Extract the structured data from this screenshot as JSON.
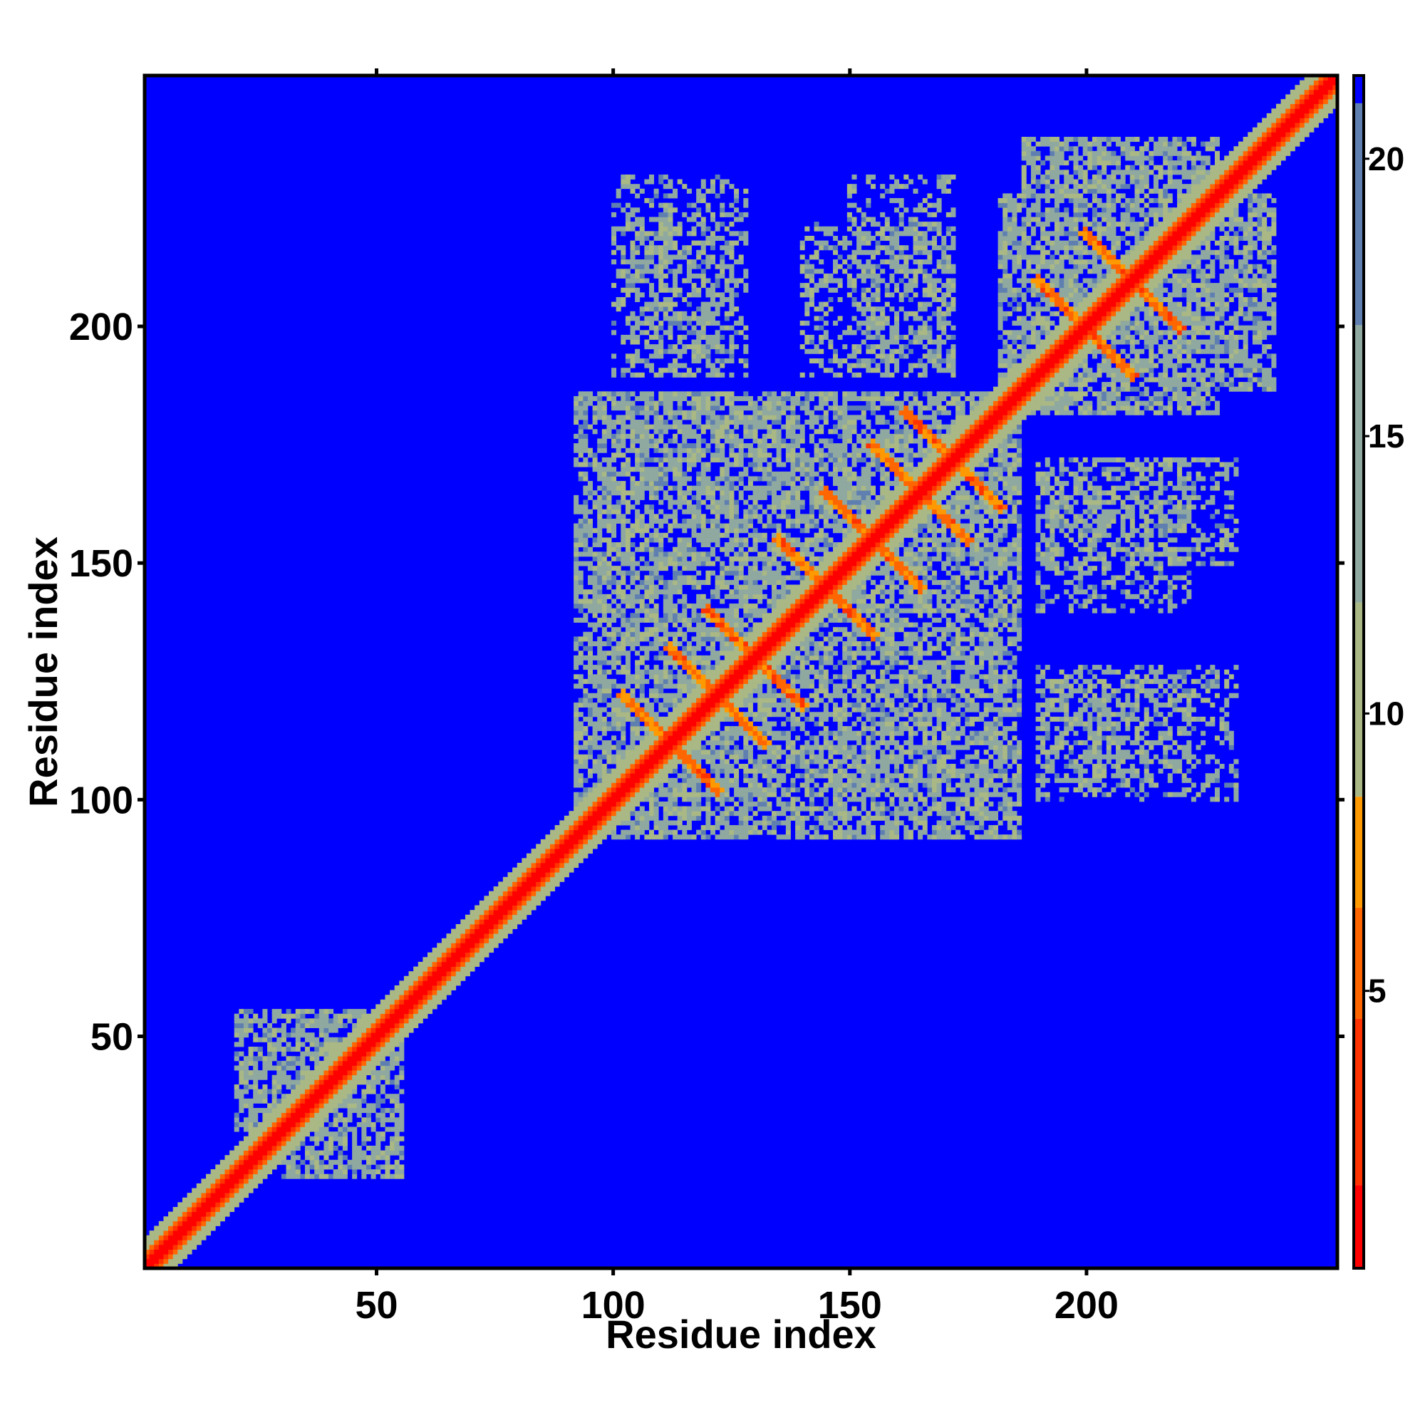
{
  "chart_data": {
    "type": "heatmap",
    "title": "",
    "xlabel": "Residue index",
    "ylabel": "Residue index",
    "xlim": [
      1,
      253
    ],
    "ylim": [
      1,
      253
    ],
    "x_ticks": [
      50,
      100,
      150,
      200
    ],
    "y_ticks": [
      50,
      100,
      150,
      200
    ],
    "x_tick_labels": [
      "50",
      "100",
      "150",
      "200"
    ],
    "y_tick_labels": [
      "50",
      "100",
      "150",
      "200"
    ],
    "colorbar": {
      "range": [
        0,
        21.5
      ],
      "ticks": [
        5,
        10,
        15,
        20
      ],
      "tick_labels": [
        "5",
        "10",
        "15",
        "20"
      ],
      "colors": [
        {
          "from": 0,
          "to": 1.5,
          "color": "#ff0000"
        },
        {
          "from": 1.5,
          "to": 4.5,
          "color": "#ff3300"
        },
        {
          "from": 4.5,
          "to": 6.5,
          "color": "#ff6600"
        },
        {
          "from": 6.5,
          "to": 8.5,
          "color": "#ff9900"
        },
        {
          "from": 8.5,
          "to": 12,
          "color": "#a9b884"
        },
        {
          "from": 12,
          "to": 17,
          "color": "#8fa8a0"
        },
        {
          "from": 17,
          "to": 21,
          "color": "#5f7fb0"
        },
        {
          "from": 21,
          "to": 21.5,
          "color": "#0000ff"
        }
      ]
    },
    "background_color": "#0000ff",
    "matrix_description": "Symmetric residue-residue distance map; values above the colorbar maximum shown in blue",
    "diagonal": {
      "residue_start": 1,
      "residue_end": 253
    },
    "contact_regions": [
      {
        "x": [
          96,
          186
        ],
        "y": [
          92,
          186
        ],
        "level": "contact"
      },
      {
        "x": [
          187,
          228
        ],
        "y": [
          182,
          240
        ],
        "level": "contact"
      },
      {
        "x": [
          20,
          50
        ],
        "y": [
          30,
          55
        ],
        "level": "contact"
      },
      {
        "x": [
          150,
          172
        ],
        "y": [
          190,
          232
        ],
        "level": "sparse"
      },
      {
        "x": [
          100,
          128
        ],
        "y": [
          190,
          232
        ],
        "level": "sparse"
      },
      {
        "x": [
          190,
          222
        ],
        "y": [
          140,
          172
        ],
        "level": "sparse"
      },
      {
        "x": [
          190,
          222
        ],
        "y": [
          104,
          125
        ],
        "level": "sparse"
      }
    ],
    "helix_crossings": [
      {
        "x": 112,
        "y": 112
      },
      {
        "x": 122,
        "y": 122
      },
      {
        "x": 130,
        "y": 130
      },
      {
        "x": 145,
        "y": 145
      },
      {
        "x": 155,
        "y": 155
      },
      {
        "x": 165,
        "y": 165
      },
      {
        "x": 172,
        "y": 172
      },
      {
        "x": 200,
        "y": 200
      },
      {
        "x": 210,
        "y": 210
      }
    ]
  }
}
